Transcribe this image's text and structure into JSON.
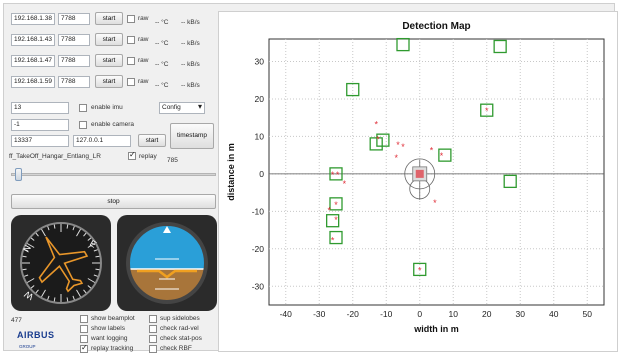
{
  "streams": [
    {
      "ip": "192.168.1.38",
      "port": "7788",
      "start_label": "start",
      "raw_label": "raw",
      "temp": "-- °C",
      "rate": "-- kB/s"
    },
    {
      "ip": "192.168.1.43",
      "port": "7788",
      "start_label": "start",
      "raw_label": "raw",
      "temp": "-- °C",
      "rate": "-- kB/s"
    },
    {
      "ip": "192.168.1.47",
      "port": "7788",
      "start_label": "start",
      "raw_label": "raw",
      "temp": "-- °C",
      "rate": "-- kB/s"
    },
    {
      "ip": "192.168.1.59",
      "port": "7788",
      "start_label": "start",
      "raw_label": "raw",
      "temp": "-- °C",
      "rate": "-- kB/s"
    }
  ],
  "imu": {
    "value": "13",
    "label": "enable imu"
  },
  "config": {
    "selected": "Config"
  },
  "camera": {
    "value": "-1",
    "label": "enable camera"
  },
  "network": {
    "port": "13337",
    "host": "127.0.0.1",
    "start_label": "start"
  },
  "timestamp_label": "timestamp",
  "replay": {
    "file": "ff_TakeOff_Hangar_Entlang_LR",
    "label": "replay",
    "frame": "785",
    "progress": 0.02
  },
  "stop_label": "stop",
  "counter": "477",
  "logo": {
    "brand": "AIRBUS",
    "sub": "GROUP"
  },
  "options": [
    {
      "label": "show beamplot",
      "checked": false
    },
    {
      "label": "sup sidelobes",
      "checked": false
    },
    {
      "label": "show labels",
      "checked": false
    },
    {
      "label": "check rad-vel",
      "checked": false
    },
    {
      "label": "want logging",
      "checked": false
    },
    {
      "label": "check stat-pos",
      "checked": false
    },
    {
      "label": "replay tracking",
      "checked": true
    },
    {
      "label": "check RBF",
      "checked": false
    }
  ],
  "colors": {
    "marker": "#e0303a",
    "box": "#2f9a2f",
    "sky": "#2a9fd8",
    "ground": "#a8753a"
  },
  "chart_data": {
    "type": "scatter",
    "title": "Detection Map",
    "xlabel": "width in m",
    "ylabel": "distance in m",
    "xlim": [
      -45,
      55
    ],
    "ylim": [
      -35,
      36
    ],
    "xticks": [
      -40,
      -30,
      -20,
      -10,
      0,
      10,
      20,
      30,
      40,
      50
    ],
    "yticks": [
      -30,
      -20,
      -10,
      0,
      10,
      20,
      30
    ],
    "grid": true,
    "series": [
      {
        "marker": "star",
        "x": [
          -26,
          -24.5,
          -22.5,
          -25,
          -27,
          -25,
          -26,
          -13,
          -12.5,
          -6.5,
          -7,
          -5,
          3.5,
          6.5,
          20,
          0,
          4.5
        ],
        "y": [
          0,
          0,
          -2.5,
          -8,
          -9.5,
          -12,
          -17.5,
          13.5,
          9.5,
          8,
          4.5,
          7.5,
          6.5,
          5,
          17,
          -25.5,
          -7.5
        ]
      },
      {
        "marker": "square",
        "x": [
          -5,
          24,
          -20,
          -25,
          -13,
          -11,
          7.5,
          20,
          27,
          -25,
          -26,
          -25,
          0
        ],
        "y": [
          34.5,
          34,
          22.5,
          0,
          8,
          9,
          5,
          17,
          -2,
          -8,
          -12.5,
          -17,
          -25.5
        ]
      }
    ],
    "sensor": {
      "x": 0,
      "y": 0
    }
  }
}
